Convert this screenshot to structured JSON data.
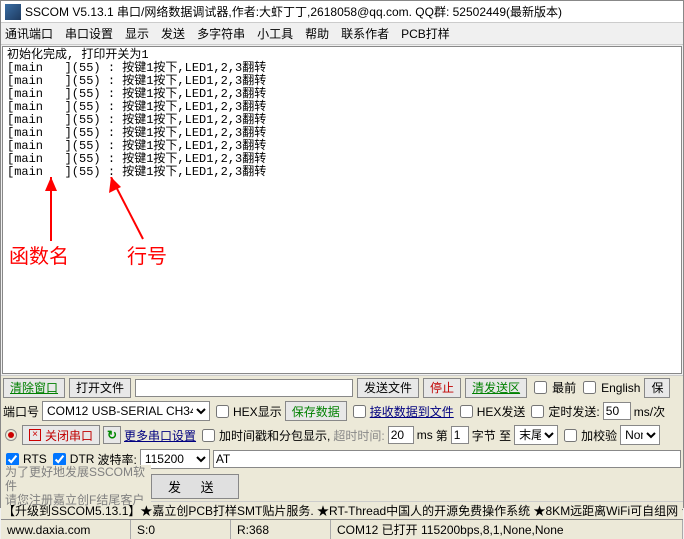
{
  "title": "SSCOM V5.13.1 串口/网络数据调试器,作者:大虾丁丁,2618058@qq.com. QQ群: 52502449(最新版本)",
  "menu": [
    "通讯端口",
    "串口设置",
    "显示",
    "发送",
    "多字符串",
    "小工具",
    "帮助",
    "联系作者",
    "PCB打样"
  ],
  "output_head": "初始化完成, 打印开关为1",
  "output_line": "[main   ](55) : 按键1按下,LED1,2,3翻转",
  "output_repeat": 9,
  "annot1": "函数名",
  "annot2": "行号",
  "tb1": {
    "clear": "清除窗口",
    "open": "打开文件",
    "sendfile": "发送文件",
    "stop": "停止",
    "clearsend": "清发送区",
    "top": "最前",
    "eng": "English",
    "sav": "保"
  },
  "tb2": {
    "portlbl": "端口号",
    "port": "COM12 USB-SERIAL CH340",
    "hexshow": "HEX显示",
    "savedata": "保存数据",
    "rxtofile": "接收数据到文件",
    "hexsend": "HEX发送",
    "timed": "定时发送:",
    "period": "50",
    "periodu": "ms/次"
  },
  "tb3": {
    "close": "关闭串口",
    "more": "更多串口设置",
    "ts": "加时间戳和分包显示,",
    "timeout": "超时时间:",
    "to_val": "20",
    "to_u": "ms",
    "no": "第",
    "no_val": "1",
    "no_u": "字节 至",
    "end": "末尾",
    "chk": "加校验",
    "none": "None"
  },
  "tb4": {
    "rts": "RTS",
    "dtr": "DTR",
    "baudlbl": "波特率:",
    "baud": "115200",
    "at": "AT"
  },
  "hint1": "为了更好地发展SSCOM软件",
  "hint2": "请您注册嘉立创F结尾客户",
  "send": "发  送",
  "promo": "【升级到SSCOM5.13.1】★嘉立创PCB打样SMT贴片服务. ★RT-Thread中国人的开源免费操作系统 ★8KM远距离WiFi可自组网 ★新",
  "status": {
    "url": "www.daxia.com",
    "s": "S:0",
    "r": "R:368",
    "conn": "COM12 已打开 115200bps,8,1,None,None"
  },
  "colors": {
    "red": "#ff0000",
    "green": "#008000"
  }
}
